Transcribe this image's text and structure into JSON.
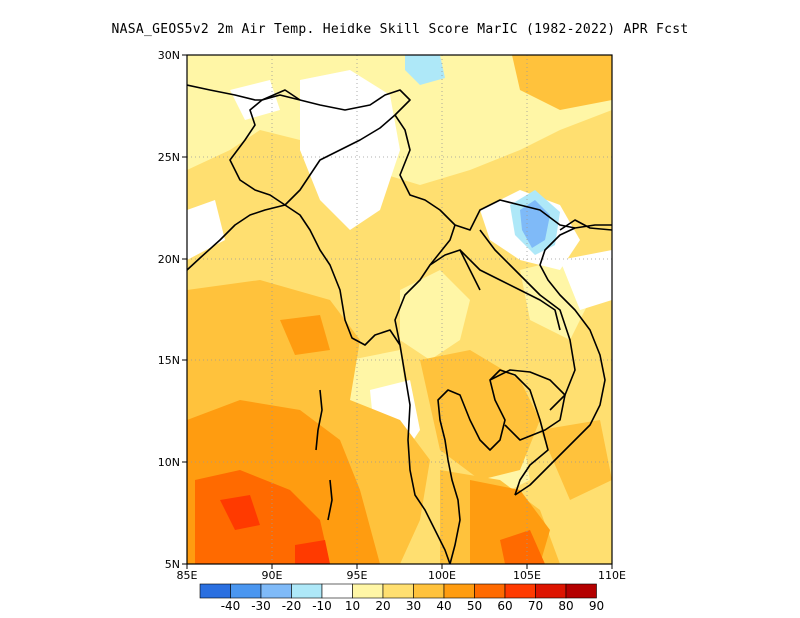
{
  "title": "NASA_GEOS5v2  2m Air Temp. Heidke Skill Score MarIC (1982-2022) APR Fcst",
  "map": {
    "lon_range": [
      85,
      110
    ],
    "lat_range": [
      5,
      30
    ],
    "lon_ticks": [
      "85E",
      "90E",
      "95E",
      "100E",
      "105E",
      "110E"
    ],
    "lat_ticks": [
      "5N",
      "10N",
      "15N",
      "20N",
      "25N",
      "30N"
    ],
    "grid": "dotted",
    "coastline_color": "#000000"
  },
  "colorbar": {
    "labels": [
      "-40",
      "-30",
      "-20",
      "-10",
      "10",
      "20",
      "30",
      "40",
      "50",
      "60",
      "70",
      "80",
      "90"
    ],
    "colors": [
      "#2a6fe0",
      "#4a96f0",
      "#7fbaf8",
      "#aee8f8",
      "#ffffff",
      "#fff6a6",
      "#ffdf70",
      "#ffc23c",
      "#ff9c10",
      "#ff6a00",
      "#ff3a00",
      "#dd1400",
      "#b40000"
    ]
  }
}
